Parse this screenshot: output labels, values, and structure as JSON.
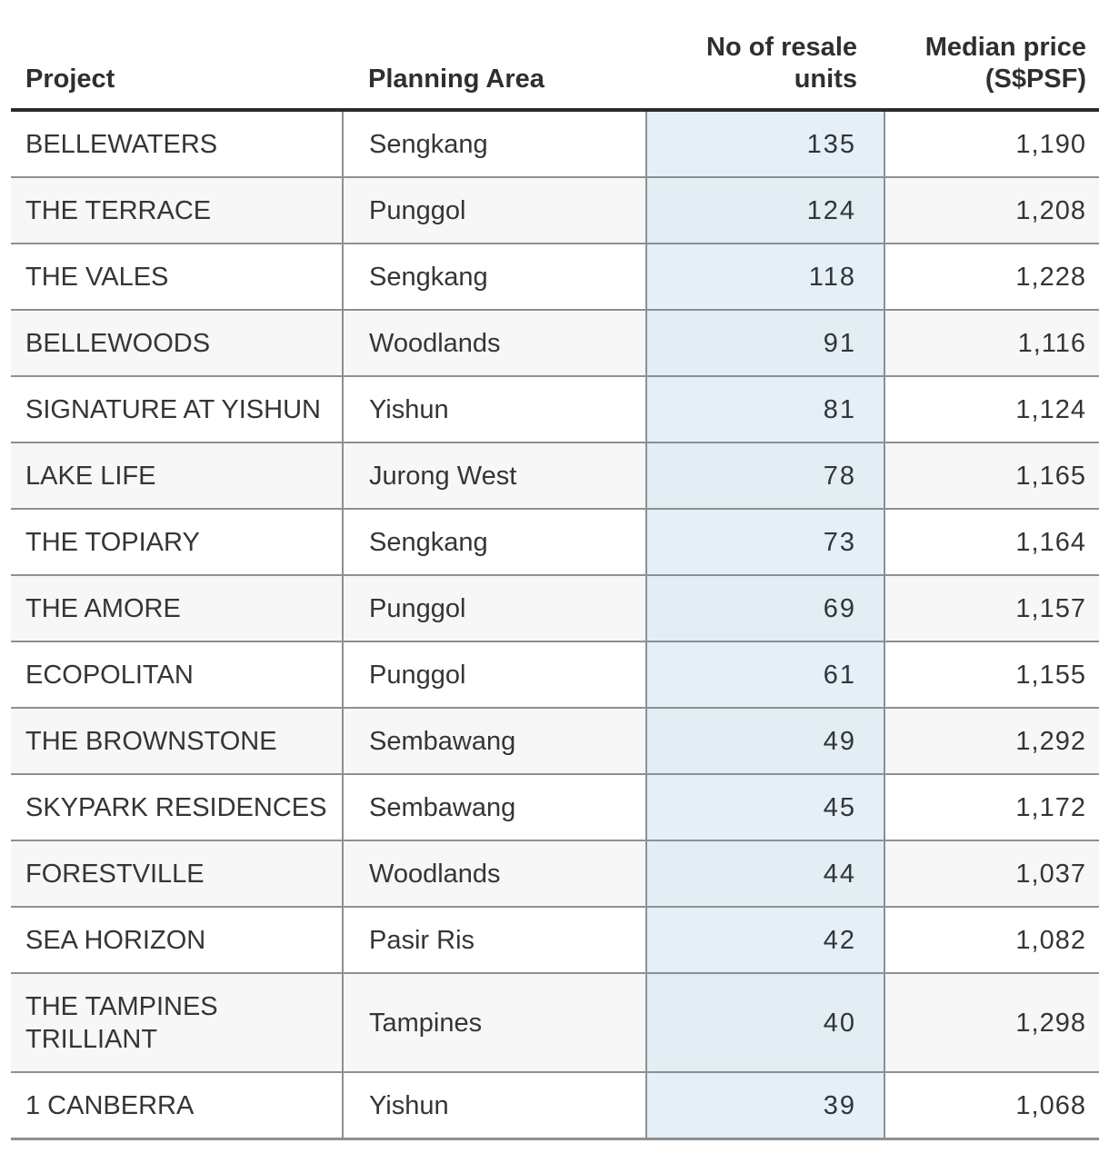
{
  "colors": {
    "highlight_column_bg": "#e4eff7",
    "highlight_column_bg_striped": "#e2edf4",
    "stripe_row_bg": "#f7f7f8",
    "grid_line": "#8d9093",
    "header_rule": "#2a2b2c",
    "text": "#333537"
  },
  "table": {
    "columns": [
      {
        "label": "Project",
        "align": "left"
      },
      {
        "label": "Planning Area",
        "align": "left"
      },
      {
        "label": "No of resale units",
        "align": "right",
        "highlighted": true
      },
      {
        "label": "Median price (S$PSF)",
        "align": "right"
      }
    ],
    "rows": [
      {
        "project": "BELLEWATERS",
        "planning_area": "Sengkang",
        "resale_units": "135",
        "median_price": "1,190"
      },
      {
        "project": "THE TERRACE",
        "planning_area": "Punggol",
        "resale_units": "124",
        "median_price": "1,208"
      },
      {
        "project": "THE VALES",
        "planning_area": "Sengkang",
        "resale_units": "118",
        "median_price": "1,228"
      },
      {
        "project": "BELLEWOODS",
        "planning_area": "Woodlands",
        "resale_units": "91",
        "median_price": "1,116"
      },
      {
        "project": "SIGNATURE AT YISHUN",
        "planning_area": "Yishun",
        "resale_units": "81",
        "median_price": "1,124"
      },
      {
        "project": "LAKE LIFE",
        "planning_area": "Jurong West",
        "resale_units": "78",
        "median_price": "1,165"
      },
      {
        "project": "THE TOPIARY",
        "planning_area": "Sengkang",
        "resale_units": "73",
        "median_price": "1,164"
      },
      {
        "project": "THE AMORE",
        "planning_area": "Punggol",
        "resale_units": "69",
        "median_price": "1,157"
      },
      {
        "project": "ECOPOLITAN",
        "planning_area": "Punggol",
        "resale_units": "61",
        "median_price": "1,155"
      },
      {
        "project": "THE BROWNSTONE",
        "planning_area": "Sembawang",
        "resale_units": "49",
        "median_price": "1,292"
      },
      {
        "project": "SKYPARK RESIDENCES",
        "planning_area": "Sembawang",
        "resale_units": "45",
        "median_price": "1,172"
      },
      {
        "project": "FORESTVILLE",
        "planning_area": "Woodlands",
        "resale_units": "44",
        "median_price": "1,037"
      },
      {
        "project": "SEA HORIZON",
        "planning_area": "Pasir Ris",
        "resale_units": "42",
        "median_price": "1,082"
      },
      {
        "project": "THE TAMPINES TRILLIANT",
        "planning_area": "Tampines",
        "resale_units": "40",
        "median_price": "1,298"
      },
      {
        "project": "1 CANBERRA",
        "planning_area": "Yishun",
        "resale_units": "39",
        "median_price": "1,068"
      }
    ]
  }
}
